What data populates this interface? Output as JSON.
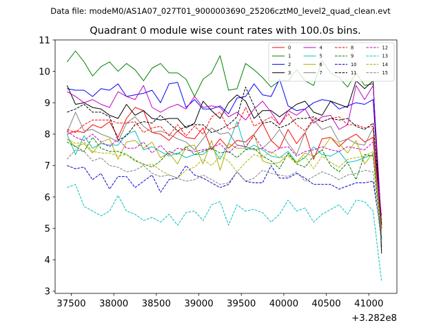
{
  "chart_data": {
    "type": "line",
    "suptitle": "Data file: modeM0/AS1A07_027T01_9000003690_25206cztM0_level2_quad_clean.evt",
    "title": "Quadrant 0 module wise count rates with 100.0s bins.",
    "xlabel": "",
    "ylabel": "",
    "offset_text": "+3.282e8",
    "xlim": [
      37310,
      41330
    ],
    "ylim": [
      2.93,
      11.0
    ],
    "xticks": [
      37500,
      38000,
      38500,
      39000,
      39500,
      40000,
      40500,
      41000
    ],
    "yticks": [
      3,
      4,
      5,
      6,
      7,
      8,
      9,
      10,
      11
    ],
    "legend_position": "top-right",
    "legend_columns": 4,
    "x": [
      37450,
      37550,
      37650,
      37750,
      37850,
      37950,
      38050,
      38150,
      38250,
      38350,
      38450,
      38550,
      38650,
      38750,
      38850,
      38950,
      39050,
      39150,
      39250,
      39350,
      39450,
      39550,
      39650,
      39750,
      39850,
      39950,
      40050,
      40150,
      40250,
      40350,
      40450,
      40550,
      40650,
      40750,
      40850,
      40950,
      41050,
      41150
    ],
    "series": [
      {
        "name": "0",
        "color": "#ff0000",
        "dash": "solid",
        "values": [
          8.0,
          8.1,
          8.05,
          8.3,
          8.2,
          8.4,
          7.9,
          8.5,
          8.85,
          8.75,
          8.05,
          8.0,
          7.8,
          8.1,
          7.9,
          7.85,
          8.2,
          7.5,
          7.85,
          7.55,
          7.8,
          7.75,
          8.0,
          8.35,
          7.8,
          7.55,
          8.15,
          7.7,
          8.05,
          7.2,
          7.85,
          7.9,
          7.6,
          7.85,
          8.0,
          7.75,
          7.9,
          4.6
        ]
      },
      {
        "name": "1",
        "color": "#008000",
        "dash": "solid",
        "values": [
          10.3,
          10.65,
          10.3,
          9.85,
          10.15,
          10.3,
          10.0,
          10.25,
          10.05,
          9.7,
          10.1,
          10.25,
          9.95,
          9.95,
          9.75,
          9.2,
          9.75,
          9.95,
          10.5,
          9.4,
          9.45,
          10.25,
          10.05,
          9.8,
          9.5,
          9.7,
          9.7,
          10.05,
          9.7,
          9.55,
          10.35,
          9.95,
          9.8,
          9.5,
          9.95,
          9.55,
          9.6,
          4.4
        ]
      },
      {
        "name": "2",
        "color": "#0000ff",
        "dash": "solid",
        "values": [
          9.45,
          9.4,
          9.4,
          9.2,
          9.45,
          9.4,
          9.6,
          9.2,
          9.25,
          9.3,
          9.4,
          9.0,
          9.6,
          9.65,
          8.85,
          9.1,
          8.8,
          8.8,
          8.9,
          8.65,
          9.15,
          9.2,
          9.6,
          9.25,
          9.2,
          9.75,
          8.9,
          8.75,
          8.8,
          9.0,
          9.1,
          9.05,
          8.8,
          8.9,
          9.0,
          8.95,
          9.1,
          5.0
        ]
      },
      {
        "name": "3",
        "color": "#000000",
        "dash": "solid",
        "values": [
          9.55,
          8.95,
          9.0,
          8.85,
          8.8,
          8.6,
          8.5,
          8.95,
          8.6,
          8.75,
          8.5,
          8.45,
          8.5,
          8.5,
          8.2,
          8.35,
          9.05,
          8.75,
          8.5,
          9.0,
          9.25,
          9.05,
          8.5,
          8.75,
          8.75,
          8.55,
          8.75,
          8.95,
          9.05,
          8.7,
          8.6,
          9.05,
          8.95,
          8.85,
          9.7,
          9.45,
          9.7,
          4.2
        ]
      },
      {
        "name": "4",
        "color": "#c000c0",
        "dash": "solid",
        "values": [
          9.35,
          9.2,
          9.0,
          9.1,
          8.95,
          8.85,
          9.35,
          9.2,
          9.1,
          9.55,
          8.85,
          8.7,
          8.85,
          8.95,
          8.8,
          9.2,
          8.85,
          8.9,
          8.85,
          8.55,
          8.7,
          8.45,
          8.8,
          9.05,
          8.7,
          8.3,
          8.75,
          8.6,
          8.8,
          8.35,
          8.55,
          8.6,
          8.15,
          8.3,
          9.55,
          9.1,
          9.55,
          5.1
        ]
      },
      {
        "name": "5",
        "color": "#00c0c0",
        "dash": "solid",
        "values": [
          8.0,
          7.35,
          7.95,
          7.55,
          7.7,
          7.65,
          7.65,
          8.0,
          8.1,
          7.5,
          7.6,
          7.45,
          7.3,
          7.4,
          7.25,
          7.35,
          7.35,
          7.6,
          7.2,
          7.7,
          8.4,
          7.5,
          7.65,
          7.5,
          7.3,
          7.25,
          7.45,
          7.1,
          7.25,
          7.6,
          7.35,
          7.3,
          7.45,
          7.1,
          7.15,
          7.25,
          7.35,
          4.9
        ]
      },
      {
        "name": "6",
        "color": "#b0b000",
        "dash": "solid",
        "values": [
          7.85,
          7.6,
          7.7,
          7.4,
          7.75,
          7.85,
          7.2,
          7.75,
          7.8,
          7.55,
          7.75,
          7.25,
          7.4,
          7.05,
          7.6,
          7.65,
          7.05,
          7.8,
          6.85,
          7.7,
          7.55,
          7.55,
          8.0,
          7.15,
          7.05,
          7.1,
          7.35,
          7.1,
          7.4,
          7.3,
          7.5,
          7.9,
          7.7,
          7.4,
          7.8,
          7.05,
          7.4,
          4.9
        ]
      },
      {
        "name": "7",
        "color": "#808080",
        "dash": "solid",
        "values": [
          8.05,
          8.7,
          8.1,
          8.15,
          8.0,
          7.9,
          7.75,
          8.35,
          8.55,
          8.25,
          8.05,
          8.1,
          8.0,
          7.85,
          7.75,
          7.5,
          7.85,
          8.2,
          8.0,
          8.05,
          7.65,
          7.6,
          7.5,
          7.55,
          7.8,
          8.15,
          7.7,
          7.35,
          8.05,
          8.45,
          8.15,
          8.25,
          7.75,
          7.85,
          7.7,
          7.65,
          8.2,
          4.6
        ]
      },
      {
        "name": "8",
        "color": "#ff0000",
        "dash": "dashed",
        "values": [
          8.15,
          8.05,
          8.3,
          8.45,
          8.45,
          8.45,
          8.35,
          8.35,
          8.4,
          8.05,
          8.2,
          8.25,
          7.95,
          8.3,
          7.95,
          8.25,
          8.0,
          8.55,
          8.7,
          8.15,
          8.25,
          8.85,
          8.25,
          8.4,
          8.55,
          8.3,
          8.65,
          8.3,
          8.1,
          8.5,
          8.4,
          8.5,
          8.55,
          8.3,
          8.3,
          8.2,
          8.25,
          5.0
        ]
      },
      {
        "name": "9",
        "color": "#008000",
        "dash": "dashed",
        "values": [
          7.75,
          7.6,
          7.45,
          7.9,
          7.55,
          7.45,
          7.45,
          7.35,
          7.15,
          7.05,
          6.95,
          7.15,
          7.45,
          7.35,
          7.6,
          7.35,
          7.45,
          7.55,
          7.4,
          7.45,
          7.25,
          7.5,
          7.55,
          7.3,
          7.15,
          6.9,
          7.4,
          7.05,
          6.95,
          7.3,
          7.5,
          7.0,
          6.8,
          7.1,
          6.55,
          7.35,
          7.3,
          4.55
        ]
      },
      {
        "name": "10",
        "color": "#0000cc",
        "dash": "dashed",
        "values": [
          7.0,
          6.9,
          6.95,
          6.55,
          6.75,
          6.25,
          6.65,
          6.65,
          6.3,
          6.5,
          6.7,
          6.15,
          6.55,
          6.6,
          7.0,
          6.7,
          6.6,
          6.45,
          6.3,
          6.4,
          6.8,
          6.5,
          6.45,
          6.45,
          7.0,
          6.6,
          6.6,
          6.75,
          6.6,
          6.4,
          6.4,
          6.4,
          6.25,
          6.35,
          6.45,
          6.45,
          6.5,
          4.7
        ]
      },
      {
        "name": "11",
        "color": "#000000",
        "dash": "dashed",
        "values": [
          8.7,
          8.8,
          8.95,
          8.7,
          8.7,
          8.55,
          7.8,
          7.95,
          8.3,
          8.4,
          8.35,
          8.6,
          8.35,
          8.1,
          8.25,
          8.3,
          8.3,
          8.05,
          8.15,
          8.3,
          8.55,
          9.5,
          8.9,
          8.35,
          8.4,
          8.2,
          8.3,
          8.5,
          8.5,
          8.55,
          8.4,
          8.5,
          8.45,
          8.5,
          8.25,
          8.15,
          8.35,
          5.1
        ]
      },
      {
        "name": "12",
        "color": "#c000c0",
        "dash": "dashed",
        "values": [
          8.1,
          7.9,
          7.8,
          8.0,
          7.75,
          7.6,
          7.85,
          7.55,
          7.55,
          7.75,
          7.4,
          7.65,
          7.35,
          7.55,
          7.5,
          7.45,
          7.5,
          7.55,
          7.7,
          7.4,
          7.65,
          7.6,
          7.95,
          7.55,
          7.4,
          7.55,
          7.6,
          7.3,
          7.45,
          7.5,
          7.6,
          7.5,
          7.45,
          7.6,
          7.55,
          7.5,
          7.75,
          5.4
        ]
      },
      {
        "name": "13",
        "color": "#00c0c0",
        "dash": "dashed",
        "values": [
          6.3,
          6.4,
          5.7,
          5.55,
          5.4,
          5.55,
          6.05,
          5.55,
          5.45,
          5.25,
          5.35,
          5.2,
          5.45,
          5.1,
          5.5,
          5.55,
          5.25,
          5.75,
          5.85,
          5.1,
          5.75,
          5.55,
          5.6,
          5.5,
          5.2,
          5.45,
          5.9,
          5.55,
          5.65,
          5.2,
          5.45,
          5.6,
          5.75,
          5.45,
          5.9,
          5.85,
          5.55,
          3.3
        ]
      },
      {
        "name": "14",
        "color": "#b0b000",
        "dash": "dashed",
        "values": [
          7.85,
          7.7,
          7.75,
          7.45,
          7.4,
          7.4,
          7.3,
          7.35,
          7.2,
          7.0,
          7.05,
          6.85,
          6.7,
          6.6,
          6.85,
          6.95,
          7.2,
          7.0,
          7.3,
          7.15,
          6.8,
          7.1,
          7.35,
          7.25,
          7.45,
          7.25,
          7.3,
          7.05,
          7.3,
          6.9,
          7.3,
          7.1,
          6.95,
          7.2,
          7.25,
          7.3,
          7.45,
          4.85
        ]
      },
      {
        "name": "15",
        "color": "#808080",
        "dash": "dashed",
        "values": [
          7.2,
          7.5,
          7.45,
          7.15,
          7.25,
          7.0,
          6.95,
          6.8,
          6.85,
          7.0,
          6.75,
          6.65,
          6.7,
          6.6,
          6.5,
          6.55,
          6.7,
          6.55,
          6.4,
          6.45,
          6.8,
          6.5,
          6.6,
          6.85,
          6.75,
          6.7,
          6.65,
          6.8,
          6.5,
          6.65,
          6.8,
          6.7,
          6.55,
          6.7,
          6.75,
          6.85,
          6.8,
          4.5
        ]
      }
    ]
  }
}
